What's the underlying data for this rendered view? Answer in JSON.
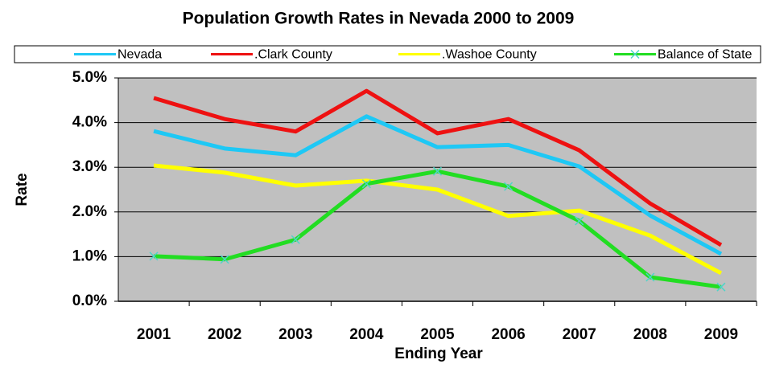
{
  "chart_data": {
    "type": "line",
    "title": "Population Growth Rates in Nevada 2000 to 2009",
    "xlabel": "Ending Year",
    "ylabel": "Rate",
    "categories": [
      "2001",
      "2002",
      "2003",
      "2004",
      "2005",
      "2006",
      "2007",
      "2008",
      "2009"
    ],
    "series": [
      {
        "name": "Nevada",
        "color": "#1ec8f5",
        "values": [
          3.81,
          3.42,
          3.27,
          4.14,
          3.45,
          3.5,
          3.02,
          1.92,
          1.06
        ]
      },
      {
        "name": ".Clark County",
        "color": "#ee1111",
        "values": [
          4.55,
          4.08,
          3.8,
          4.71,
          3.76,
          4.08,
          3.38,
          2.19,
          1.26
        ]
      },
      {
        "name": ".Washoe County",
        "color": "#ffff00",
        "values": [
          3.04,
          2.88,
          2.59,
          2.7,
          2.5,
          1.91,
          2.03,
          1.47,
          0.63
        ]
      },
      {
        "name": "Balance of State",
        "color": "#22dd22",
        "marker": "x",
        "values": [
          1.01,
          0.94,
          1.38,
          2.63,
          2.91,
          2.57,
          1.8,
          0.54,
          0.32
        ]
      }
    ],
    "ylim": [
      0,
      5
    ],
    "yticks": [
      {
        "value": 0,
        "label": "0.0%"
      },
      {
        "value": 1,
        "label": "1.0%"
      },
      {
        "value": 2,
        "label": "2.0%"
      },
      {
        "value": 3,
        "label": "3.0%"
      },
      {
        "value": 4,
        "label": "4.0%"
      },
      {
        "value": 5,
        "label": "5.0%"
      }
    ],
    "grid": true,
    "legend": "top"
  }
}
